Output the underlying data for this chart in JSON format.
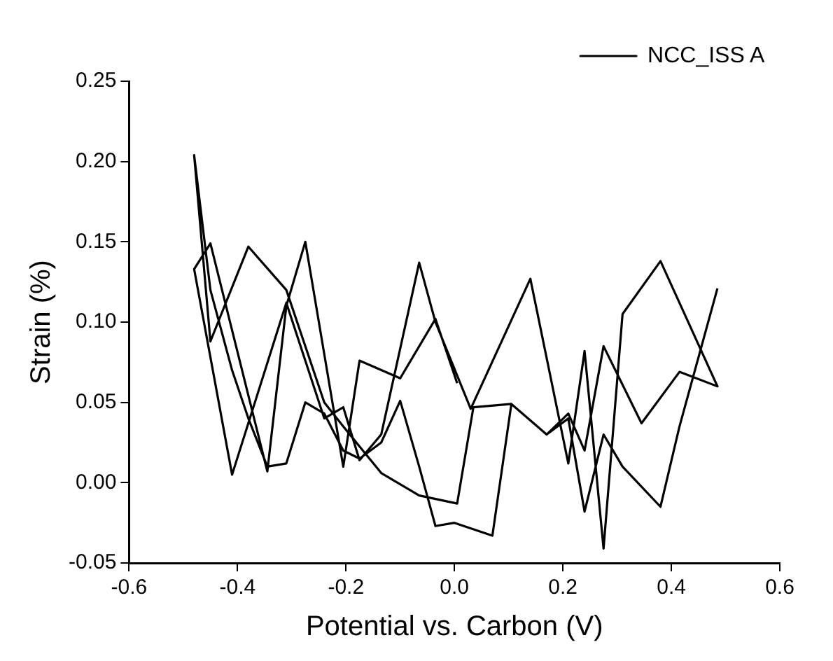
{
  "chart_data": {
    "type": "line",
    "xlabel": "Potential vs. Carbon (V)",
    "ylabel": "Strain (%)",
    "xlim": [
      -0.6,
      0.6
    ],
    "xticks": [
      -0.6,
      -0.4,
      -0.2,
      {
        "value": 0,
        "label": "0.0"
      },
      {
        "value": 0.2,
        "label": "0.2"
      },
      {
        "value": 0.4,
        "label": "0.4"
      },
      0.6
    ],
    "ylim": [
      -0.05,
      0.25
    ],
    "yticks": [
      -0.05,
      {
        "value": 0,
        "label": "0.00"
      },
      0.05,
      {
        "value": 0.1,
        "label": "0.10"
      },
      0.15,
      {
        "value": 0.2,
        "label": "0.20"
      },
      0.25
    ],
    "grid": false,
    "legend": "top right",
    "marker": "none",
    "line_style": "solid",
    "series": [
      {
        "name": "NCC_ISS A",
        "color": "#000000",
        "x": [
          0.005,
          -0.035,
          -0.1,
          -0.175,
          -0.205,
          -0.275,
          -0.31,
          -0.345,
          -0.45,
          -0.48,
          -0.41,
          -0.31,
          -0.24,
          -0.205,
          -0.175,
          -0.135,
          -0.065,
          -0.035,
          0.03,
          0.14,
          0.21,
          0.24,
          0.275,
          0.31,
          0.38,
          0.485,
          0.415,
          0.345,
          0.275,
          0.24,
          0.21,
          0.17,
          0.105,
          0.035,
          0.005,
          -0.065,
          -0.135,
          -0.205,
          -0.24,
          -0.31,
          -0.38,
          -0.45,
          -0.48,
          -0.45,
          -0.41,
          -0.38,
          -0.345,
          -0.31,
          -0.275,
          -0.24,
          -0.205,
          -0.175,
          -0.135,
          -0.1,
          -0.065,
          -0.035,
          0.0,
          0.07,
          0.105,
          0.17,
          0.21,
          0.24,
          0.275,
          0.31,
          0.38,
          0.415,
          0.485
        ],
        "values": [
          0.062,
          0.102,
          0.065,
          0.076,
          0.01,
          0.15,
          0.11,
          0.007,
          0.149,
          0.133,
          0.005,
          0.112,
          0.04,
          0.047,
          0.014,
          0.03,
          0.137,
          0.1,
          0.046,
          0.127,
          0.012,
          0.082,
          -0.041,
          0.105,
          0.138,
          0.06,
          0.069,
          0.037,
          0.085,
          0.02,
          0.043,
          0.03,
          0.049,
          0.047,
          -0.013,
          -0.008,
          0.006,
          0.035,
          0.05,
          0.12,
          0.147,
          0.088,
          0.204,
          0.12,
          0.07,
          0.04,
          0.01,
          0.012,
          0.05,
          0.043,
          0.02,
          0.015,
          0.025,
          0.051,
          0.01,
          -0.027,
          -0.025,
          -0.033,
          0.049,
          0.03,
          0.04,
          -0.018,
          0.03,
          0.01,
          -0.015,
          0.035,
          0.121
        ]
      }
    ]
  }
}
